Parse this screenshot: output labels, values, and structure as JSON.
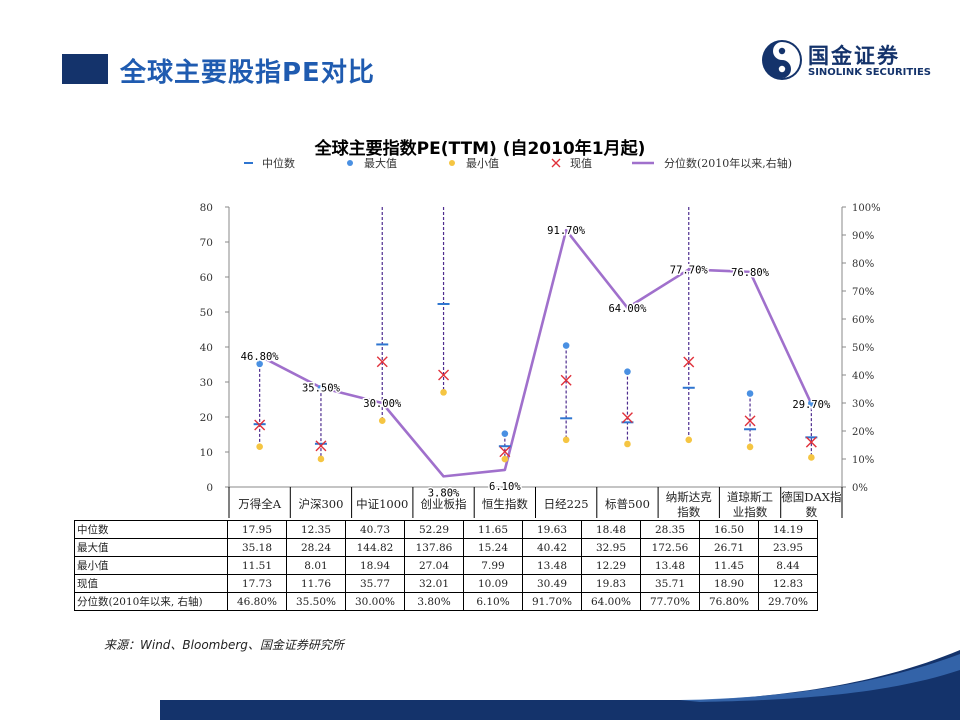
{
  "page": {
    "title": "全球主要股指PE对比",
    "source": "来源：Wind、Bloomberg、国金证券研究所"
  },
  "logo": {
    "cn": "国金证券",
    "en": "SINOLINK SECURITIES"
  },
  "colors": {
    "navy": "#14336b",
    "blue": "#1f5bb0",
    "median": "#2e75d0",
    "max": "#4a90e2",
    "min": "#f5c542",
    "current": "#e0303a",
    "pct_line": "#a070cc",
    "whisker": "#4f2d8f"
  },
  "chart_data": {
    "type": "line",
    "title": "全球主要指数PE(TTM)  (自2010年1月起)",
    "categories": [
      "万得全A",
      "沪深300",
      "中证1000",
      "创业板指",
      "恒生指数",
      "日经225",
      "标普500",
      "纳斯达克指数",
      "道琼斯工业指数",
      "德国DAX指数"
    ],
    "category_labels": [
      [
        "万得全A"
      ],
      [
        "沪深300"
      ],
      [
        "中证1000"
      ],
      [
        "创业板指"
      ],
      [
        "恒生指数"
      ],
      [
        "日经225"
      ],
      [
        "标普500"
      ],
      [
        "纳斯达克",
        "指数"
      ],
      [
        "道琼斯工",
        "业指数"
      ],
      [
        "德国DAX指",
        "数"
      ]
    ],
    "legend": [
      "中位数",
      "最大值",
      "最小值",
      "现值",
      "分位数(2010年以来,右轴)"
    ],
    "legend_position": "top",
    "left_axis": {
      "min": 0,
      "max": 80,
      "ticks": [
        "0",
        "10",
        "20",
        "30",
        "40",
        "50",
        "60",
        "70",
        "80"
      ]
    },
    "right_axis": {
      "min": 0,
      "max": 100,
      "ticks": [
        "0%",
        "10%",
        "20%",
        "30%",
        "40%",
        "50%",
        "60%",
        "70%",
        "80%",
        "90%",
        "100%"
      ]
    },
    "series": [
      {
        "name": "中位数",
        "values": [
          17.95,
          12.35,
          40.73,
          52.29,
          11.65,
          19.63,
          18.48,
          28.35,
          16.5,
          14.19
        ]
      },
      {
        "name": "最大值",
        "values": [
          35.18,
          28.24,
          144.82,
          137.86,
          15.24,
          40.42,
          32.95,
          172.56,
          26.71,
          23.95
        ]
      },
      {
        "name": "最小值",
        "values": [
          11.51,
          8.01,
          18.94,
          27.04,
          7.99,
          13.48,
          12.29,
          13.48,
          11.45,
          8.44
        ]
      },
      {
        "name": "现值",
        "values": [
          17.73,
          11.76,
          35.77,
          32.01,
          10.09,
          30.49,
          19.83,
          35.71,
          18.9,
          12.83
        ]
      },
      {
        "name": "分位数(2010年以来,右轴)",
        "axis": "right",
        "values": [
          46.8,
          35.5,
          30.0,
          3.8,
          6.1,
          91.7,
          64.0,
          77.7,
          76.8,
          29.7
        ]
      }
    ],
    "pct_labels": [
      "46.80%",
      "35.50%",
      "30.00%",
      "3.80%",
      "6.10%",
      "91.70%",
      "64.00%",
      "77.70%",
      "76.80%",
      "29.70%"
    ]
  },
  "table": {
    "rows": [
      {
        "label": "中位数",
        "cells": [
          "17.95",
          "12.35",
          "40.73",
          "52.29",
          "11.65",
          "19.63",
          "18.48",
          "28.35",
          "16.50",
          "14.19"
        ]
      },
      {
        "label": "最大值",
        "cells": [
          "35.18",
          "28.24",
          "144.82",
          "137.86",
          "15.24",
          "40.42",
          "32.95",
          "172.56",
          "26.71",
          "23.95"
        ]
      },
      {
        "label": "最小值",
        "cells": [
          "11.51",
          "8.01",
          "18.94",
          "27.04",
          "7.99",
          "13.48",
          "12.29",
          "13.48",
          "11.45",
          "8.44"
        ]
      },
      {
        "label": "现值",
        "cells": [
          "17.73",
          "11.76",
          "35.77",
          "32.01",
          "10.09",
          "30.49",
          "19.83",
          "35.71",
          "18.90",
          "12.83"
        ]
      },
      {
        "label": "分位数(2010年以来, 右轴)",
        "cells": [
          "46.80%",
          "35.50%",
          "30.00%",
          "3.80%",
          "6.10%",
          "91.70%",
          "64.00%",
          "77.70%",
          "76.80%",
          "29.70%"
        ]
      }
    ]
  }
}
